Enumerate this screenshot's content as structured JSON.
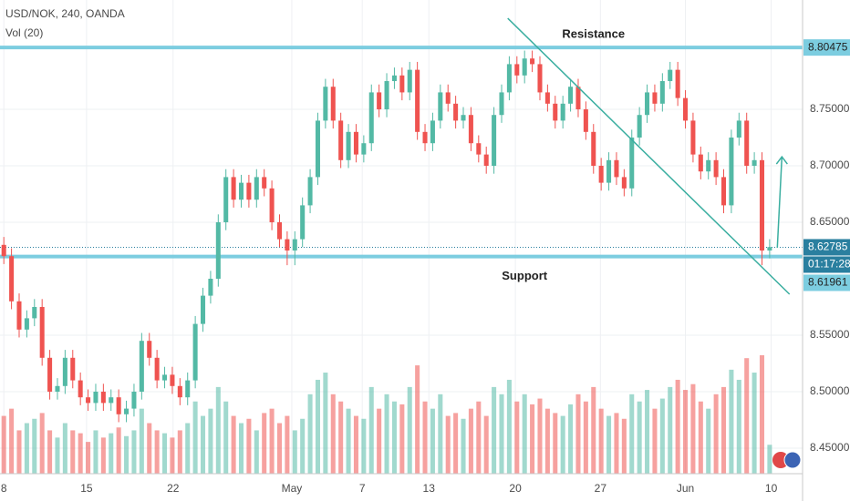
{
  "chart_data": {
    "type": "candlestick",
    "title": "USD/NOK, 240, OANDA",
    "subtitle": "Vol (20)",
    "up_color": "#53b9a5",
    "down_color": "#ef5350",
    "xlim": [
      -0.5,
      104.3
    ],
    "ylim": [
      8.4274,
      8.8468
    ],
    "xticks": [
      {
        "value": 0,
        "label": "8"
      },
      {
        "value": 10.8,
        "label": "15"
      },
      {
        "value": 22.1,
        "label": "22"
      },
      {
        "value": 37.6,
        "label": "May"
      },
      {
        "value": 46.8,
        "label": "7"
      },
      {
        "value": 55.5,
        "label": "13"
      },
      {
        "value": 66.8,
        "label": "20"
      },
      {
        "value": 77.9,
        "label": "27"
      },
      {
        "value": 89.0,
        "label": "Jun"
      },
      {
        "value": 100.2,
        "label": "10"
      }
    ],
    "yticks": [
      {
        "value": 8.45,
        "label": "8.45000"
      },
      {
        "value": 8.5,
        "label": "8.50000"
      },
      {
        "value": 8.55,
        "label": "8.55000"
      },
      {
        "value": 8.65,
        "label": "8.65000"
      },
      {
        "value": 8.7,
        "label": "8.70000"
      },
      {
        "value": 8.75,
        "label": "8.75000"
      }
    ],
    "grid": true,
    "open": [
      8.63,
      8.62,
      8.58,
      8.555,
      8.565,
      8.575,
      8.53,
      8.5,
      8.505,
      8.53,
      8.51,
      8.495,
      8.49,
      8.5,
      8.49,
      8.495,
      8.48,
      8.485,
      8.5,
      8.545,
      8.53,
      8.51,
      8.515,
      8.505,
      8.495,
      8.51,
      8.56,
      8.585,
      8.6,
      8.65,
      8.69,
      8.67,
      8.685,
      8.67,
      8.69,
      8.68,
      8.65,
      8.635,
      8.625,
      8.635,
      8.665,
      8.69,
      8.74,
      8.77,
      8.74,
      8.705,
      8.73,
      8.71,
      8.72,
      8.765,
      8.75,
      8.775,
      8.78,
      8.765,
      8.785,
      8.73,
      8.72,
      8.74,
      8.765,
      8.755,
      8.74,
      8.745,
      8.72,
      8.71,
      8.7,
      8.745,
      8.765,
      8.79,
      8.78,
      8.795,
      8.79,
      8.765,
      8.755,
      8.74,
      8.755,
      8.77,
      8.75,
      8.73,
      8.7,
      8.685,
      8.705,
      8.69,
      8.68,
      8.725,
      8.745,
      8.765,
      8.755,
      8.775,
      8.785,
      8.76,
      8.74,
      8.71,
      8.695,
      8.705,
      8.69,
      8.665,
      8.725,
      8.74,
      8.7,
      8.705,
      8.625
    ],
    "high": [
      8.637,
      8.627,
      8.587,
      8.572,
      8.582,
      8.582,
      8.537,
      8.512,
      8.537,
      8.537,
      8.517,
      8.502,
      8.507,
      8.507,
      8.502,
      8.502,
      8.492,
      8.507,
      8.552,
      8.552,
      8.537,
      8.522,
      8.522,
      8.512,
      8.517,
      8.567,
      8.592,
      8.607,
      8.657,
      8.697,
      8.697,
      8.692,
      8.692,
      8.697,
      8.697,
      8.687,
      8.657,
      8.642,
      8.642,
      8.672,
      8.697,
      8.747,
      8.777,
      8.777,
      8.747,
      8.737,
      8.737,
      8.727,
      8.772,
      8.772,
      8.782,
      8.787,
      8.787,
      8.792,
      8.792,
      8.737,
      8.747,
      8.772,
      8.772,
      8.762,
      8.752,
      8.752,
      8.727,
      8.717,
      8.752,
      8.772,
      8.797,
      8.797,
      8.802,
      8.802,
      8.797,
      8.772,
      8.762,
      8.762,
      8.777,
      8.777,
      8.757,
      8.737,
      8.707,
      8.712,
      8.712,
      8.697,
      8.732,
      8.752,
      8.772,
      8.772,
      8.782,
      8.792,
      8.792,
      8.767,
      8.747,
      8.717,
      8.712,
      8.712,
      8.697,
      8.732,
      8.747,
      8.747,
      8.712,
      8.712,
      8.635
    ],
    "low": [
      8.613,
      8.573,
      8.548,
      8.548,
      8.558,
      8.523,
      8.493,
      8.493,
      8.498,
      8.503,
      8.488,
      8.483,
      8.483,
      8.483,
      8.483,
      8.473,
      8.473,
      8.478,
      8.493,
      8.523,
      8.503,
      8.503,
      8.498,
      8.488,
      8.488,
      8.503,
      8.553,
      8.578,
      8.593,
      8.643,
      8.663,
      8.663,
      8.663,
      8.663,
      8.673,
      8.643,
      8.628,
      8.612,
      8.612,
      8.628,
      8.658,
      8.683,
      8.733,
      8.733,
      8.698,
      8.698,
      8.703,
      8.703,
      8.713,
      8.743,
      8.743,
      8.768,
      8.758,
      8.758,
      8.723,
      8.713,
      8.713,
      8.733,
      8.748,
      8.733,
      8.733,
      8.713,
      8.703,
      8.693,
      8.693,
      8.738,
      8.758,
      8.773,
      8.773,
      8.783,
      8.758,
      8.748,
      8.733,
      8.733,
      8.748,
      8.743,
      8.723,
      8.693,
      8.678,
      8.678,
      8.683,
      8.673,
      8.673,
      8.718,
      8.738,
      8.748,
      8.748,
      8.768,
      8.753,
      8.733,
      8.703,
      8.688,
      8.688,
      8.683,
      8.658,
      8.658,
      8.718,
      8.693,
      8.693,
      8.612,
      8.618
    ],
    "close": [
      8.62,
      8.58,
      8.555,
      8.565,
      8.575,
      8.53,
      8.5,
      8.505,
      8.53,
      8.51,
      8.495,
      8.49,
      8.5,
      8.49,
      8.495,
      8.48,
      8.485,
      8.5,
      8.545,
      8.53,
      8.51,
      8.515,
      8.505,
      8.495,
      8.51,
      8.56,
      8.585,
      8.6,
      8.65,
      8.69,
      8.67,
      8.685,
      8.67,
      8.69,
      8.68,
      8.65,
      8.635,
      8.625,
      8.635,
      8.665,
      8.69,
      8.74,
      8.77,
      8.74,
      8.705,
      8.73,
      8.71,
      8.72,
      8.765,
      8.75,
      8.775,
      8.78,
      8.765,
      8.785,
      8.73,
      8.72,
      8.74,
      8.765,
      8.755,
      8.74,
      8.745,
      8.72,
      8.71,
      8.7,
      8.745,
      8.765,
      8.79,
      8.78,
      8.795,
      8.79,
      8.765,
      8.755,
      8.74,
      8.755,
      8.77,
      8.75,
      8.73,
      8.7,
      8.685,
      8.705,
      8.69,
      8.68,
      8.725,
      8.745,
      8.765,
      8.755,
      8.775,
      8.785,
      8.76,
      8.74,
      8.71,
      8.695,
      8.705,
      8.69,
      8.665,
      8.725,
      8.74,
      8.7,
      8.705,
      8.625,
      8.628
    ],
    "volume": [
      40,
      45,
      30,
      35,
      38,
      42,
      30,
      25,
      35,
      30,
      28,
      22,
      30,
      25,
      28,
      32,
      26,
      30,
      45,
      35,
      30,
      28,
      25,
      30,
      35,
      50,
      40,
      45,
      60,
      50,
      40,
      35,
      38,
      30,
      42,
      45,
      35,
      40,
      30,
      38,
      55,
      65,
      70,
      55,
      50,
      45,
      40,
      38,
      60,
      45,
      55,
      50,
      48,
      60,
      75,
      50,
      45,
      55,
      40,
      42,
      38,
      45,
      50,
      40,
      60,
      55,
      65,
      50,
      55,
      48,
      52,
      45,
      42,
      40,
      48,
      55,
      50,
      60,
      45,
      40,
      42,
      38,
      55,
      50,
      58,
      45,
      52,
      60,
      65,
      58,
      62,
      50,
      45,
      55,
      60,
      72,
      65,
      80,
      70,
      82,
      20
    ],
    "resistance": {
      "label": "Resistance",
      "value": 8.80475,
      "value_label": "8.80475",
      "x": 77
    },
    "support": {
      "label": "Support",
      "value": 8.61961,
      "value_label": "8.61961",
      "x": 68
    },
    "current": {
      "value": 8.62785,
      "value_label": "8.62785",
      "countdown": "01:17:28"
    },
    "trendline": {
      "x": [
        65.8,
        102.6
      ],
      "y": [
        8.8306,
        8.5863
      ]
    },
    "arrow": {
      "x": [
        101.0,
        101.6
      ],
      "y": [
        8.6274,
        8.708
      ]
    }
  }
}
